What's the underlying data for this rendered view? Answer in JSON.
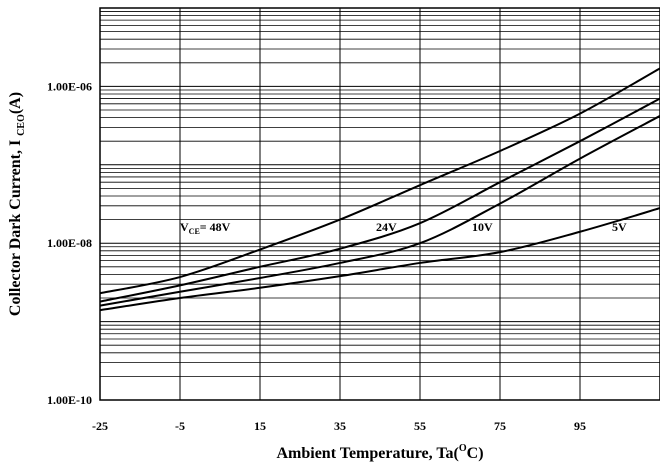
{
  "chart_data": {
    "type": "line",
    "title": "",
    "xlabel": "Ambient Temperature, Ta(",
    "xlabel_sup": "O",
    "xlabel_end": "C)",
    "ylabel": "Collector Dark Current, I ",
    "ylabel_sub": "CEO",
    "ylabel_end": "(A)",
    "xlim": [
      -25,
      115
    ],
    "ylim": [
      1e-10,
      1e-05
    ],
    "y_scale": "log",
    "grid": true,
    "x_ticks": [
      -25,
      -5,
      15,
      35,
      55,
      75,
      95
    ],
    "x_tick_labels": [
      "-25",
      "-5",
      "15",
      "35",
      "55",
      "75",
      "95"
    ],
    "y_ticks": [
      1e-10,
      1e-08,
      1e-06
    ],
    "y_tick_labels": [
      "1.00E-10",
      "1.00E-08",
      "1.00E-06"
    ],
    "series": [
      {
        "name": "48V",
        "label_prefix": "V",
        "label_sub": "CE",
        "label_main": "= 48V",
        "label_at": [
          -5,
          1.6e-08
        ],
        "x": [
          -25,
          -5,
          15,
          35,
          55,
          75,
          95,
          115
        ],
        "y": [
          2.3e-09,
          3.7e-09,
          8.3e-09,
          2e-08,
          5.5e-08,
          1.5e-07,
          4.5e-07,
          1.7e-06
        ]
      },
      {
        "name": "24V",
        "label_main": "24V",
        "label_at": [
          44,
          1.6e-08
        ],
        "x": [
          -25,
          -5,
          15,
          35,
          55,
          75,
          95,
          115
        ],
        "y": [
          1.8e-09,
          2.9e-09,
          5e-09,
          8.5e-09,
          1.8e-08,
          6e-08,
          2e-07,
          7e-07
        ]
      },
      {
        "name": "10V",
        "label_main": "10V",
        "label_at": [
          68,
          1.6e-08
        ],
        "x": [
          -25,
          -5,
          15,
          35,
          55,
          75,
          95,
          115
        ],
        "y": [
          1.6e-09,
          2.4e-09,
          3.6e-09,
          5.6e-09,
          1e-08,
          3.2e-08,
          1.2e-07,
          4.2e-07
        ]
      },
      {
        "name": "5V",
        "label_main": "5V",
        "label_at": [
          103,
          1.6e-08
        ],
        "x": [
          -25,
          -5,
          15,
          35,
          55,
          75,
          95,
          115
        ],
        "y": [
          1.4e-09,
          2e-09,
          2.7e-09,
          3.8e-09,
          5.6e-09,
          7.7e-09,
          1.4e-08,
          2.8e-08
        ]
      }
    ]
  }
}
